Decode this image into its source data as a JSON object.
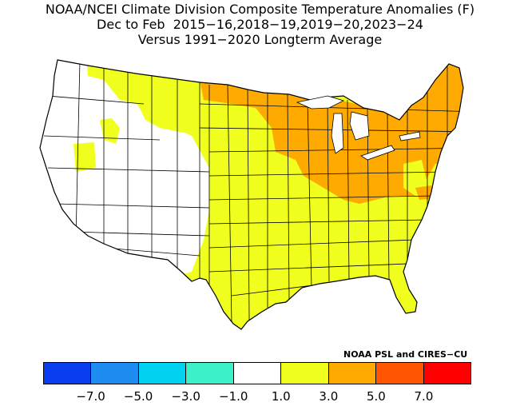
{
  "title": {
    "line1": "NOAA/NCEI Climate Division Composite Temperature Anomalies (F)",
    "line2": "Dec to Feb  2015−16,2018−19,2019−20,2023−24",
    "line3": "Versus 1991−2020 Longterm Average"
  },
  "credit": "NOAA PSL and CIRES−CU",
  "colorbar": {
    "colors": [
      "#0a3cf0",
      "#1e8cf0",
      "#00d2f0",
      "#3cf0c8",
      "#ffffff",
      "#f0ff1e",
      "#ffaa00",
      "#ff5500",
      "#ff0000"
    ],
    "labels": [
      "−7.0",
      "−5.0",
      "−3.0",
      "−1.0",
      "1.0",
      "3.0",
      "5.0",
      "7.0"
    ]
  },
  "map": {
    "regions": [
      {
        "name": "pacific-northwest-west",
        "category": "white"
      },
      {
        "name": "northern-rockies",
        "category": "yellow"
      },
      {
        "name": "great-basin-southwest",
        "category": "white"
      },
      {
        "name": "northern-plains-west",
        "category": "yellow"
      },
      {
        "name": "upper-midwest",
        "category": "orange"
      },
      {
        "name": "great-lakes-ohio-valley",
        "category": "orange"
      },
      {
        "name": "northeast",
        "category": "orange"
      },
      {
        "name": "central-southern-plains",
        "category": "yellow"
      },
      {
        "name": "southeast",
        "category": "yellow"
      },
      {
        "name": "mid-atlantic",
        "category": "yellow"
      }
    ]
  }
}
